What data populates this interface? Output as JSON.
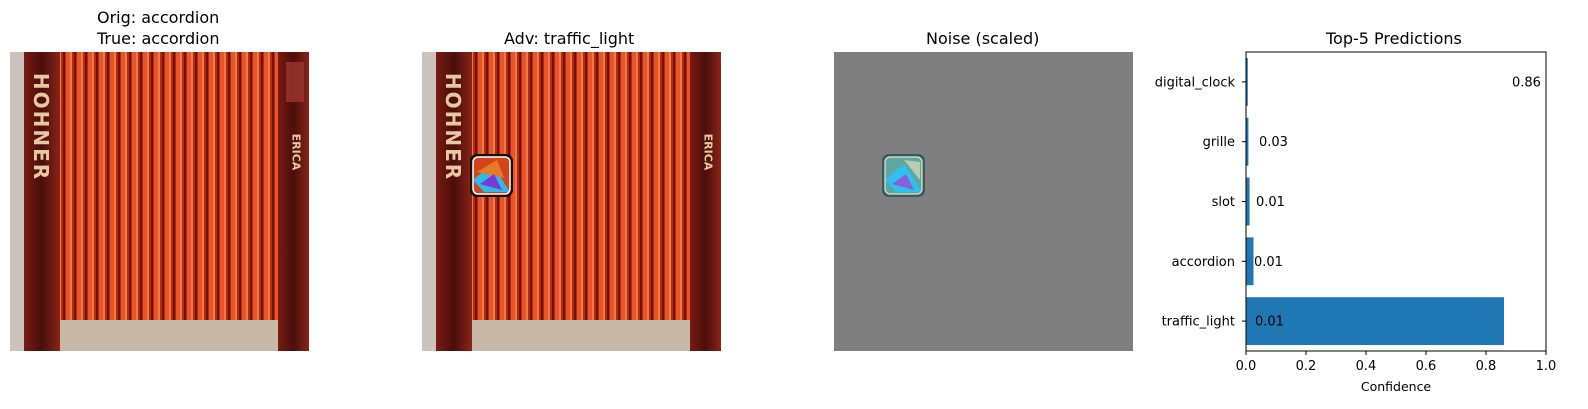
{
  "panels": {
    "original": {
      "title_line1": "Orig: accordion",
      "title_line2": "True: accordion"
    },
    "adversarial": {
      "title": "Adv: traffic_light"
    },
    "noise": {
      "title": "Noise (scaled)"
    }
  },
  "accordion_lettering": {
    "left": "HOHNER",
    "right": "ERICA"
  },
  "colors": {
    "bar": "#1f77b4",
    "noise_background": "#7f7f7f",
    "bellows_red": "#c8321a",
    "frame_dark": "#3a0c08"
  },
  "chart_data": {
    "type": "bar",
    "orientation": "horizontal",
    "title": "Top-5 Predictions",
    "xlabel": "Confidence",
    "ylabel": "",
    "xlim": [
      0,
      1.0
    ],
    "x_ticks": [
      "0.0",
      "0.2",
      "0.4",
      "0.6",
      "0.8",
      "1.0"
    ],
    "categories": [
      "digital_clock",
      "grille",
      "slot",
      "accordion",
      "traffic_light"
    ],
    "values": [
      0.006,
      0.008,
      0.012,
      0.025,
      0.86
    ],
    "value_labels": [
      "0.86",
      "0.03",
      "0.01",
      "0.01",
      "0.01"
    ],
    "grid": false,
    "legend": "none"
  }
}
